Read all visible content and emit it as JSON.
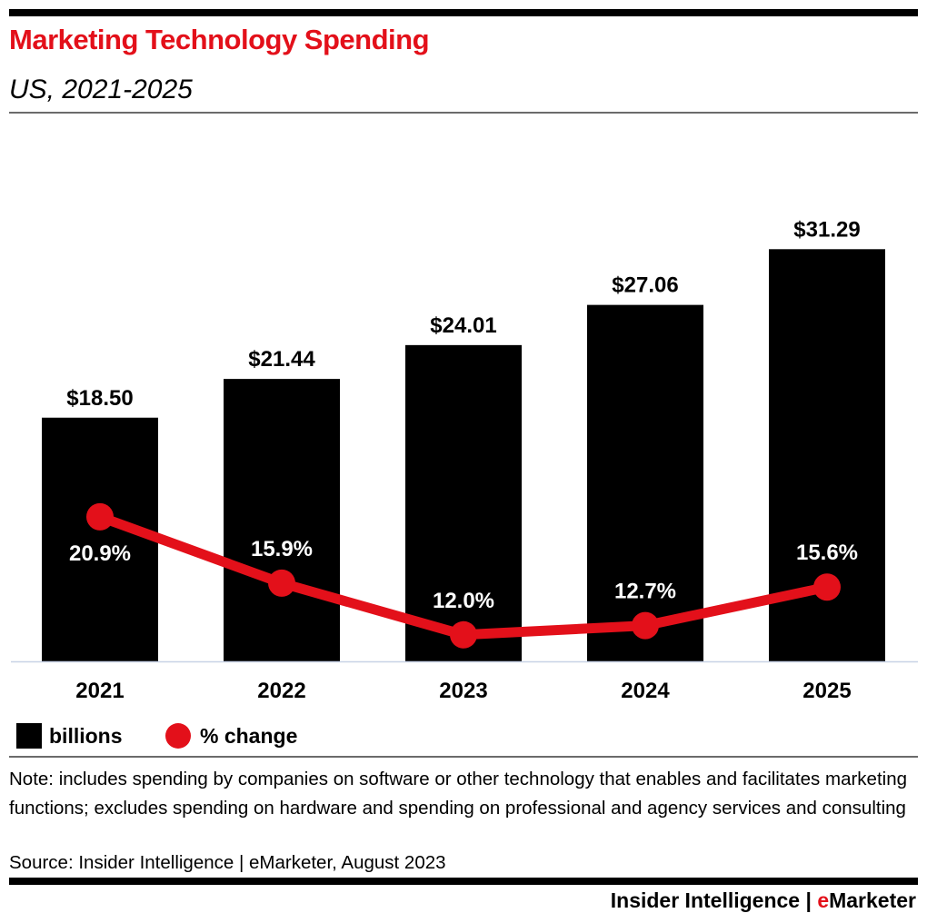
{
  "header": {
    "title": "Marketing Technology Spending",
    "subtitle": "US, 2021-2025"
  },
  "colors": {
    "bar": "#000000",
    "line": "#e3101a",
    "title": "#e3101a",
    "axis": "#c8d2e6"
  },
  "chart_data": {
    "type": "bar",
    "title": "Marketing Technology Spending",
    "subtitle": "US, 2021-2025",
    "categories": [
      "2021",
      "2022",
      "2023",
      "2024",
      "2025"
    ],
    "series": [
      {
        "name": "billions",
        "type": "bar",
        "values": [
          18.5,
          21.44,
          24.01,
          27.06,
          31.29
        ],
        "labels": [
          "$18.50",
          "$21.44",
          "$24.01",
          "$27.06",
          "$31.29"
        ]
      },
      {
        "name": "% change",
        "type": "line",
        "values": [
          20.9,
          15.9,
          12.0,
          12.7,
          15.6
        ],
        "labels": [
          "20.9%",
          "15.9%",
          "12.0%",
          "12.7%",
          "15.6%"
        ]
      }
    ],
    "xlabel": "",
    "ylabel": "",
    "ylim": [
      0,
      32
    ],
    "grid": false,
    "legend": "bottom-left"
  },
  "legend": {
    "bar_label": "billions",
    "line_label": "% change"
  },
  "footer": {
    "note": "Note: includes spending by companies on software or other technology that enables and facilitates marketing functions; excludes spending on hardware and spending on professional and agency services and consulting",
    "source": "Source: Insider Intelligence | eMarketer, August 2023",
    "brand_prefix": "Insider Intelligence | ",
    "brand_e": "e",
    "brand_rest": "Marketer"
  }
}
